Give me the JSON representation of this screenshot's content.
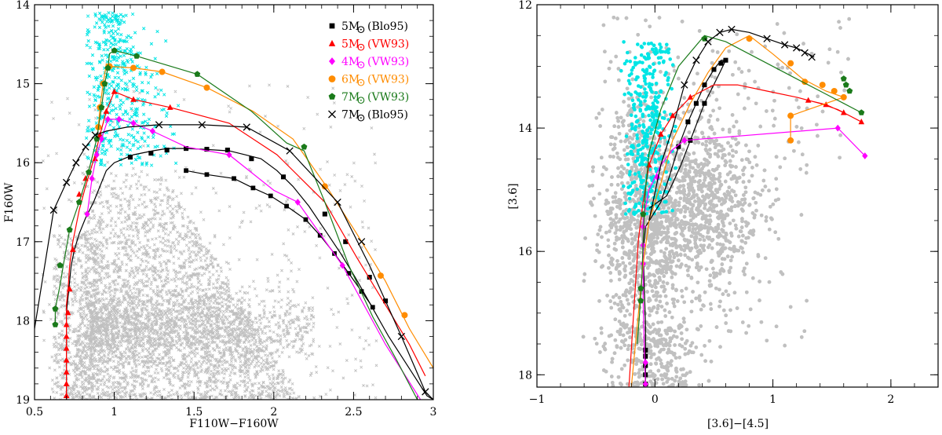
{
  "chart_data": [
    {
      "type": "scatter",
      "title": "",
      "xlabel": "F110W−F160W",
      "ylabel": "F160W",
      "xlim": [
        0.5,
        3.0
      ],
      "ylim": [
        19,
        14
      ],
      "x_ticks": [
        0.5,
        1,
        1.5,
        2,
        2.5,
        3
      ],
      "x_tick_labels": [
        "0.5",
        "1",
        "1.5",
        "2",
        "2.5",
        "3"
      ],
      "y_ticks": [
        14,
        15,
        16,
        17,
        18,
        19
      ],
      "y_tick_labels": [
        "14",
        "15",
        "16",
        "17",
        "18",
        "19"
      ],
      "legend_position": "top-right",
      "background_cloud": {
        "color": "#c0c0c0",
        "marker": "cross",
        "description_values": {
          "x_range": [
            0.55,
            2.3
          ],
          "y_range": [
            15.9,
            19
          ]
        }
      },
      "cyan_cloud": {
        "color": "#00e5e5",
        "marker": "cross",
        "x_range": [
          0.85,
          1.4
        ],
        "y_range": [
          14.1,
          16.1
        ]
      },
      "series": [
        {
          "name": "5M",
          "legend_main": "5M",
          "legend_sub": "⊙",
          "legend_ref": "(Blo95)",
          "color": "#000000",
          "marker": "square",
          "x": [
            0.7,
            0.7,
            0.7,
            0.7,
            0.7,
            0.7,
            0.7,
            0.7,
            0.7,
            0.7,
            0.71,
            0.72,
            0.73,
            0.75,
            0.78,
            0.82,
            0.87,
            0.91,
            0.95,
            1.0,
            1.06,
            1.12,
            1.24,
            1.33,
            1.44,
            1.56,
            1.72,
            1.82,
            1.92,
            2.02,
            2.12,
            2.22,
            2.32,
            2.42,
            2.51,
            2.58,
            2.65,
            2.72,
            2.8,
            2.88,
            2.96,
            3.0
          ],
          "y": [
            19.0,
            18.8,
            18.6,
            18.5,
            18.4,
            18.3,
            18.2,
            18.1,
            18.0,
            17.9,
            17.7,
            17.5,
            17.3,
            17.1,
            16.9,
            16.7,
            16.5,
            16.3,
            16.1,
            16.0,
            15.95,
            15.9,
            15.85,
            15.82,
            15.82,
            15.83,
            15.85,
            15.9,
            15.95,
            16.1,
            16.3,
            16.55,
            16.85,
            17.15,
            17.45,
            17.7,
            17.95,
            18.2,
            18.45,
            18.7,
            18.95,
            19.0
          ],
          "marker_x": [
            1.1,
            1.23,
            1.33,
            1.45,
            1.58,
            1.71,
            1.86,
            2.06,
            2.32,
            2.45,
            2.6,
            2.7
          ],
          "marker_y": [
            15.93,
            15.88,
            15.84,
            15.82,
            15.83,
            15.84,
            15.95,
            16.18,
            16.65,
            17.0,
            17.45,
            17.75
          ],
          "track2_x": [
            1.45,
            1.58,
            1.75,
            1.87,
            1.98,
            2.08,
            2.2,
            2.29,
            2.38,
            2.47,
            2.55,
            2.62
          ],
          "track2_y": [
            16.1,
            16.15,
            16.2,
            16.32,
            16.42,
            16.55,
            16.72,
            16.92,
            17.15,
            17.4,
            17.63,
            17.83
          ]
        },
        {
          "name": "5M",
          "legend_main": "5M",
          "legend_sub": "⊙",
          "legend_ref": "(VW93)",
          "color": "#ff0000",
          "marker": "triangle",
          "x": [
            0.7,
            0.7,
            0.7,
            0.7,
            0.7,
            0.7,
            0.7,
            0.7,
            0.7,
            0.71,
            0.72,
            0.74,
            0.78,
            0.82,
            0.85,
            0.88,
            0.91,
            0.95,
            1.0,
            1.12,
            1.35,
            1.72,
            2.02,
            2.32,
            2.52,
            2.7,
            2.85,
            2.95
          ],
          "y": [
            19.0,
            18.85,
            18.7,
            18.55,
            18.4,
            18.25,
            18.1,
            17.95,
            17.8,
            17.6,
            17.3,
            17.0,
            16.6,
            16.3,
            16.1,
            15.9,
            15.65,
            15.35,
            15.1,
            15.2,
            15.3,
            15.5,
            15.9,
            16.5,
            17.2,
            17.8,
            18.3,
            18.7
          ],
          "marker_x": [
            0.7,
            0.7,
            0.7,
            0.7,
            0.7,
            0.7,
            0.7,
            0.71,
            0.72,
            0.74,
            0.78,
            0.82,
            0.88,
            0.91,
            0.95,
            1.0,
            1.12,
            1.35
          ],
          "marker_y": [
            18.95,
            18.8,
            18.65,
            18.5,
            18.35,
            18.2,
            18.05,
            17.9,
            17.6,
            17.1,
            16.4,
            16.2,
            15.95,
            15.65,
            15.35,
            15.1,
            15.2,
            15.3
          ]
        },
        {
          "name": "4M",
          "legend_main": "4M",
          "legend_sub": "⊙",
          "legend_ref": "(VW93)",
          "color": "#ff00ff",
          "marker": "diamond",
          "x": [
            0.83,
            0.86,
            0.89,
            0.92,
            0.96,
            1.03,
            1.12,
            1.24,
            1.45,
            1.72,
            2.0,
            2.15,
            2.43,
            2.7,
            2.92
          ],
          "y": [
            16.65,
            16.2,
            15.9,
            15.7,
            15.45,
            15.45,
            15.5,
            15.6,
            15.8,
            15.9,
            16.35,
            16.5,
            17.3,
            18.3,
            19.0
          ],
          "marker_x": [
            0.83,
            0.86,
            0.89,
            0.92,
            0.96,
            1.03,
            1.12,
            1.24,
            1.72,
            2.15,
            2.43
          ],
          "marker_y": [
            16.65,
            16.2,
            15.9,
            15.7,
            15.45,
            15.45,
            15.5,
            15.6,
            15.9,
            16.5,
            17.3
          ]
        },
        {
          "name": "6M",
          "legend_main": "6M",
          "legend_sub": "⊙",
          "legend_ref": "(VW93)",
          "color": "#ff8c00",
          "marker": "circle",
          "x": [
            0.9,
            0.91,
            0.93,
            0.95,
            0.97,
            1.12,
            1.3,
            1.58,
            1.87,
            2.12,
            2.33,
            2.52,
            2.7,
            2.85,
            3.0
          ],
          "y": [
            15.55,
            15.3,
            15.0,
            14.75,
            14.78,
            14.8,
            14.85,
            15.05,
            15.35,
            15.7,
            16.3,
            16.9,
            17.5,
            18.1,
            18.6
          ],
          "marker_x": [
            0.9,
            0.91,
            0.93,
            0.97,
            1.12,
            1.3,
            1.58,
            2.32,
            2.67,
            2.82
          ],
          "marker_y": [
            15.55,
            15.3,
            15.0,
            14.78,
            14.8,
            14.85,
            15.05,
            16.3,
            17.43,
            17.93
          ]
        },
        {
          "name": "7M",
          "legend_main": "7M",
          "legend_sub": "⊙",
          "legend_ref": "(VW93)",
          "color": "#1a7a1a",
          "marker": "pentagon",
          "x": [
            0.63,
            0.63,
            0.66,
            0.68,
            0.72,
            0.78,
            0.84,
            0.89,
            0.92,
            0.94,
            0.96,
            0.97,
            1.0,
            1.14,
            1.52,
            1.86,
            2.08,
            2.19,
            2.32,
            2.47,
            2.62,
            2.77,
            2.9
          ],
          "y": [
            18.05,
            17.85,
            17.55,
            17.3,
            16.85,
            16.5,
            16.1,
            15.7,
            15.3,
            15.0,
            14.8,
            14.62,
            14.58,
            14.65,
            14.88,
            15.35,
            15.75,
            15.85,
            16.5,
            17.3,
            17.95,
            18.5,
            19.0
          ],
          "marker_x": [
            0.63,
            0.63,
            0.66,
            0.72,
            0.78,
            0.84,
            0.89,
            0.92,
            0.94,
            0.96,
            1.0,
            1.14,
            1.52,
            2.19
          ],
          "marker_y": [
            18.05,
            17.85,
            17.3,
            16.85,
            16.5,
            16.12,
            15.7,
            15.3,
            15.0,
            14.8,
            14.58,
            14.65,
            14.88,
            15.8
          ]
        },
        {
          "name": "7M",
          "legend_main": "7M",
          "legend_sub": "⊙",
          "legend_ref": "(Blo95)",
          "color": "#000000",
          "marker": "x",
          "x": [
            0.5,
            0.62,
            0.7,
            0.76,
            0.82,
            0.88,
            0.95,
            1.08,
            1.28,
            1.55,
            1.83,
            2.1,
            2.4,
            2.6,
            2.8,
            2.95,
            3.0
          ],
          "y": [
            18.1,
            16.6,
            16.25,
            16.0,
            15.8,
            15.65,
            15.6,
            15.55,
            15.52,
            15.52,
            15.55,
            15.85,
            16.5,
            17.3,
            18.2,
            18.9,
            19.0
          ],
          "marker_x": [
            0.62,
            0.7,
            0.76,
            0.82,
            0.88,
            1.28,
            1.55,
            1.83,
            2.1,
            2.4,
            2.55,
            2.8,
            2.95
          ],
          "marker_y": [
            16.6,
            16.25,
            16.0,
            15.8,
            15.65,
            15.52,
            15.52,
            15.55,
            15.85,
            16.5,
            17.0,
            18.2,
            18.9
          ]
        }
      ]
    },
    {
      "type": "scatter",
      "title": "",
      "xlabel": "[3.6]−[4.5]",
      "ylabel": "[3.6]",
      "xlim": [
        -1.0,
        2.4
      ],
      "ylim": [
        18.2,
        12.0
      ],
      "x_ticks": [
        -1,
        0,
        1,
        2
      ],
      "x_tick_labels": [
        "−1",
        "0",
        "1",
        "2"
      ],
      "y_ticks": [
        12,
        14,
        16,
        18
      ],
      "y_tick_labels": [
        "12",
        "14",
        "16",
        "18"
      ],
      "background_cloud": {
        "color": "#c0c0c0",
        "marker": "dot",
        "x_range": [
          -0.6,
          1.3
        ],
        "y_range": [
          13.5,
          18.2
        ]
      },
      "cyan_cloud": {
        "color": "#00e5e5",
        "marker": "dot",
        "x_range": [
          -0.25,
          0.15
        ],
        "y_range": [
          12.6,
          15.5
        ]
      },
      "series": [
        {
          "name": "5M (Blo95)",
          "color": "#000000",
          "marker": "square",
          "x": [
            -0.08,
            -0.08,
            -0.08,
            -0.09,
            -0.1,
            -0.08,
            0.05,
            0.12,
            0.2,
            0.28,
            0.35,
            0.42,
            0.5,
            0.56,
            0.6,
            0.55,
            0.42,
            0.3,
            0.22,
            0.15,
            0.1,
            -0.05
          ],
          "y": [
            18.2,
            17.8,
            17.2,
            16.6,
            16.0,
            15.6,
            15.2,
            14.8,
            14.3,
            13.9,
            13.6,
            13.3,
            13.05,
            12.9,
            12.9,
            13.1,
            13.6,
            14.2,
            14.6,
            14.9,
            15.1,
            15.3
          ],
          "marker_x": [
            -0.08,
            -0.08,
            -0.08,
            -0.08,
            -0.08,
            0.2,
            0.28,
            0.35,
            0.42,
            0.5,
            0.56,
            0.6,
            0.42,
            0.3
          ],
          "marker_y": [
            18.15,
            18.0,
            17.85,
            17.7,
            17.6,
            14.3,
            13.9,
            13.6,
            13.3,
            13.05,
            12.95,
            12.9,
            13.6,
            14.2
          ]
        },
        {
          "name": "5M (VW93)",
          "color": "#ff0000",
          "marker": "triangle",
          "x": [
            -0.22,
            -0.18,
            -0.14,
            -0.1,
            -0.05,
            0.05,
            0.15,
            0.3,
            0.5,
            0.7,
            0.95,
            1.2,
            1.4,
            1.55,
            1.65,
            1.75,
            1.6,
            1.45,
            1.3
          ],
          "y": [
            18.2,
            17.0,
            15.8,
            15.2,
            14.6,
            14.1,
            13.8,
            13.5,
            13.3,
            13.3,
            13.4,
            13.5,
            13.6,
            13.7,
            13.8,
            13.9,
            13.75,
            13.62,
            13.55
          ],
          "marker_x": [
            -0.05,
            0.05,
            0.15,
            0.3,
            1.3,
            1.45,
            1.6,
            1.75
          ],
          "marker_y": [
            14.6,
            14.1,
            13.8,
            13.5,
            13.55,
            13.62,
            13.75,
            13.9
          ]
        },
        {
          "name": "4M (VW93)",
          "color": "#ff00ff",
          "marker": "diamond",
          "x": [
            -0.08,
            -0.09,
            -0.1,
            -0.1,
            -0.1,
            -0.05,
            0.05,
            0.15,
            0.25,
            1.55,
            1.78
          ],
          "y": [
            18.2,
            17.6,
            16.8,
            16.0,
            15.5,
            15.0,
            14.6,
            14.35,
            14.2,
            14.0,
            14.45
          ],
          "marker_x": [
            -0.08,
            -0.08,
            -0.1,
            -0.1,
            -0.1,
            0.02,
            0.25,
            1.55,
            1.78
          ],
          "marker_y": [
            18.15,
            17.8,
            16.2,
            15.9,
            15.6,
            14.8,
            14.2,
            14.0,
            14.45
          ]
        },
        {
          "name": "6M (VW93)",
          "color": "#ff8c00",
          "marker": "circle",
          "x": [
            -0.2,
            -0.15,
            -0.1,
            -0.05,
            0.05,
            0.15,
            0.3,
            0.45,
            0.6,
            0.8,
            1.0,
            1.25,
            1.45,
            1.6,
            1.15,
            1.15
          ],
          "y": [
            18.2,
            17.2,
            16.2,
            15.5,
            14.9,
            14.2,
            13.6,
            13.1,
            12.7,
            12.5,
            12.8,
            13.2,
            13.4,
            13.5,
            13.8,
            14.2
          ],
          "marker_x": [
            0.8,
            1.15,
            1.27,
            1.42,
            1.52,
            1.6,
            1.15,
            1.15
          ],
          "marker_y": [
            12.55,
            12.95,
            13.25,
            13.3,
            13.4,
            13.5,
            13.8,
            14.2
          ]
        },
        {
          "name": "7M (VW93)",
          "color": "#1a7a1a",
          "marker": "pentagon",
          "x": [
            -0.15,
            -0.13,
            -0.11,
            -0.1,
            -0.09,
            -0.08,
            -0.05,
            0.05,
            0.2,
            0.42,
            0.6,
            0.9,
            1.2,
            1.45,
            1.6,
            1.75
          ],
          "y": [
            17.5,
            17.0,
            16.4,
            15.8,
            15.4,
            15.0,
            14.4,
            13.7,
            13.0,
            12.5,
            12.6,
            12.9,
            13.2,
            13.45,
            13.6,
            13.75
          ],
          "marker_x": [
            -0.12,
            -0.12,
            -0.1,
            0.42,
            1.6,
            1.62,
            1.65,
            1.75
          ],
          "marker_y": [
            16.8,
            16.6,
            15.4,
            12.55,
            13.2,
            13.3,
            13.4,
            13.75
          ]
        },
        {
          "name": "7M (Blo95)",
          "color": "#000000",
          "marker": "x",
          "x": [
            -0.05,
            0.05,
            0.15,
            0.25,
            0.35,
            0.45,
            0.55,
            0.65,
            0.8,
            0.95,
            1.1,
            1.2,
            1.3,
            1.35
          ],
          "y": [
            15.5,
            14.6,
            14.0,
            13.3,
            12.9,
            12.6,
            12.45,
            12.4,
            12.45,
            12.55,
            12.65,
            12.7,
            12.8,
            12.85
          ],
          "marker_x": [
            0.25,
            0.35,
            0.45,
            0.55,
            0.65,
            0.95,
            1.1,
            1.2,
            1.27,
            1.33
          ],
          "marker_y": [
            13.3,
            12.9,
            12.6,
            12.45,
            12.4,
            12.55,
            12.65,
            12.7,
            12.78,
            12.85
          ]
        }
      ]
    }
  ]
}
